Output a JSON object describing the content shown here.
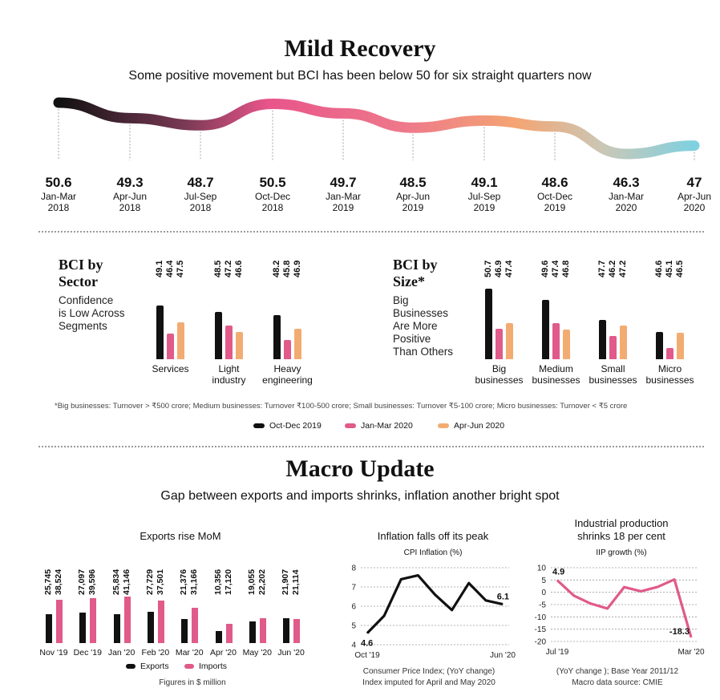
{
  "header": {
    "title": "Mild Recovery",
    "subtitle": "Some positive movement but BCI has been below 50 for six straight quarters now"
  },
  "colors": {
    "oct_dec_2019": "#111111",
    "jan_mar_2020": "#e05a8a",
    "apr_jun_2020": "#f2ac72",
    "exports": "#111111",
    "imports": "#e05a8a"
  },
  "bci_sector": {
    "heading_1": "BCI by",
    "heading_2": "Sector",
    "desc_1": "Confidence",
    "desc_2": "is Low Across",
    "desc_3": "Segments"
  },
  "bci_size": {
    "heading_1": "BCI by",
    "heading_2": "Size*",
    "desc_1": "Big",
    "desc_2": "Businesses",
    "desc_3": "Are More",
    "desc_4": "Positive",
    "desc_5": "Than Others"
  },
  "footnote": "*Big businesses: Turnover > ₹500 crore; Medium businesses: Turnover ₹100-500 crore; Small businesses: Turnover ₹5-100 crore; Micro businesses: Turnover < ₹5 crore",
  "legend": {
    "s1": "Oct-Dec 2019",
    "s2": "Jan-Mar 2020",
    "s3": "Apr-Jun 2020"
  },
  "macro": {
    "title": "Macro Update",
    "subtitle": "Gap between exports and imports shrinks, inflation another bright spot"
  },
  "exports_chart": {
    "title": "Exports rise MoM",
    "legend_exports": "Exports",
    "legend_imports": "Imports",
    "note": "Figures in $ million"
  },
  "inflation_chart": {
    "title": "Inflation falls off its peak",
    "subtitle": "CPI Inflation (%)",
    "note_1": "Consumer Price Index; (YoY change)",
    "note_2": "Index imputed for April and May 2020"
  },
  "iip_chart": {
    "title_1": "Industrial production",
    "title_2": "shrinks 18 per cent",
    "subtitle": "IIP growth (%)",
    "note_1": "(YoY change ); Base Year 2011/12",
    "note_2": "Macro data source: CMIE"
  },
  "chart_data": [
    {
      "id": "bci_timeline",
      "type": "line",
      "title": "Mild Recovery",
      "subtitle": "Some positive movement but BCI has been below 50 for six straight quarters now",
      "points": [
        {
          "value": "50.6",
          "period": "Jan-Mar",
          "year": "2018"
        },
        {
          "value": "49.3",
          "period": "Apr-Jun",
          "year": "2018"
        },
        {
          "value": "48.7",
          "period": "Jul-Sep",
          "year": "2018"
        },
        {
          "value": "50.5",
          "period": "Oct-Dec",
          "year": "2018"
        },
        {
          "value": "49.7",
          "period": "Jan-Mar",
          "year": "2019"
        },
        {
          "value": "48.5",
          "period": "Apr-Jun",
          "year": "2019"
        },
        {
          "value": "49.1",
          "period": "Jul-Sep",
          "year": "2019"
        },
        {
          "value": "48.6",
          "period": "Oct-Dec",
          "year": "2019"
        },
        {
          "value": "46.3",
          "period": "Jan-Mar",
          "year": "2020"
        },
        {
          "value": "47",
          "period": "Apr-Jun",
          "year": "2020"
        }
      ]
    },
    {
      "id": "bci_by_sector",
      "type": "bar",
      "title": "BCI by Sector",
      "groups": [
        {
          "label_1": "Services",
          "label_2": "",
          "values": [
            "49.1",
            "46.4",
            "47.5"
          ]
        },
        {
          "label_1": "Light",
          "label_2": "industry",
          "values": [
            "48.5",
            "47.2",
            "46.6"
          ]
        },
        {
          "label_1": "Heavy",
          "label_2": "engineering",
          "values": [
            "48.2",
            "45.8",
            "46.9"
          ]
        }
      ],
      "series_names": [
        "Oct-Dec 2019",
        "Jan-Mar 2020",
        "Apr-Jun 2020"
      ]
    },
    {
      "id": "bci_by_size",
      "type": "bar",
      "title": "BCI by Size*",
      "groups": [
        {
          "label_1": "Big",
          "label_2": "businesses",
          "values": [
            "50.7",
            "46.9",
            "47.4"
          ]
        },
        {
          "label_1": "Medium",
          "label_2": "businesses",
          "values": [
            "49.6",
            "47.4",
            "46.8"
          ]
        },
        {
          "label_1": "Small",
          "label_2": "businesses",
          "values": [
            "47.7",
            "46.2",
            "47.2"
          ]
        },
        {
          "label_1": "Micro",
          "label_2": "businesses",
          "values": [
            "46.6",
            "45.1",
            "46.5"
          ]
        }
      ],
      "series_names": [
        "Oct-Dec 2019",
        "Jan-Mar 2020",
        "Apr-Jun 2020"
      ]
    },
    {
      "id": "exports_imports",
      "type": "bar",
      "title": "Exports rise MoM",
      "categories": [
        "Nov '19",
        "Dec '19",
        "Jan '20",
        "Feb '20",
        "Mar '20",
        "Apr '20",
        "May '20",
        "Jun '20"
      ],
      "series": [
        {
          "name": "Exports",
          "values": [
            "25,745",
            "27,097",
            "25,834",
            "27,729",
            "21,376",
            "10,356",
            "19,055",
            "21,907"
          ]
        },
        {
          "name": "Imports",
          "values": [
            "38,524",
            "39,596",
            "41,146",
            "37,501",
            "31,166",
            "17,120",
            "22,202",
            "21,114"
          ]
        }
      ]
    },
    {
      "id": "cpi_inflation",
      "type": "line",
      "title": "Inflation falls off its peak",
      "ylabel": "CPI Inflation (%)",
      "ylim": [
        4,
        8
      ],
      "yticks": [
        "4",
        "5",
        "6",
        "7",
        "8"
      ],
      "xlabels": [
        "Oct '19",
        "Jun '20"
      ],
      "x": [
        "Oct '19",
        "Nov '19",
        "Dec '19",
        "Jan '20",
        "Feb '20",
        "Mar '20",
        "Apr '20",
        "May '20",
        "Jun '20"
      ],
      "values": [
        4.6,
        5.5,
        7.4,
        7.6,
        6.6,
        5.8,
        7.2,
        6.3,
        6.1
      ],
      "annotations": [
        "4.6",
        "6.1"
      ],
      "grid": true
    },
    {
      "id": "iip_growth",
      "type": "line",
      "title": "Industrial production shrinks 18 per cent",
      "ylabel": "IIP growth (%)",
      "ylim": [
        -20,
        10
      ],
      "yticks": [
        "10",
        "5",
        "0",
        "-5",
        "-10",
        "-15",
        "-20"
      ],
      "xlabels": [
        "Jul '19",
        "Mar '20"
      ],
      "x": [
        "Jul '19",
        "Aug '19",
        "Sep '19",
        "Oct '19",
        "Nov '19",
        "Dec '19",
        "Jan '20",
        "Feb '20",
        "Mar '20"
      ],
      "values": [
        4.9,
        -1.4,
        -4.6,
        -6.6,
        2.1,
        0.4,
        2.2,
        5.2,
        -18.3
      ],
      "annotations": [
        "4.9",
        "-18.3"
      ],
      "grid": true
    }
  ]
}
